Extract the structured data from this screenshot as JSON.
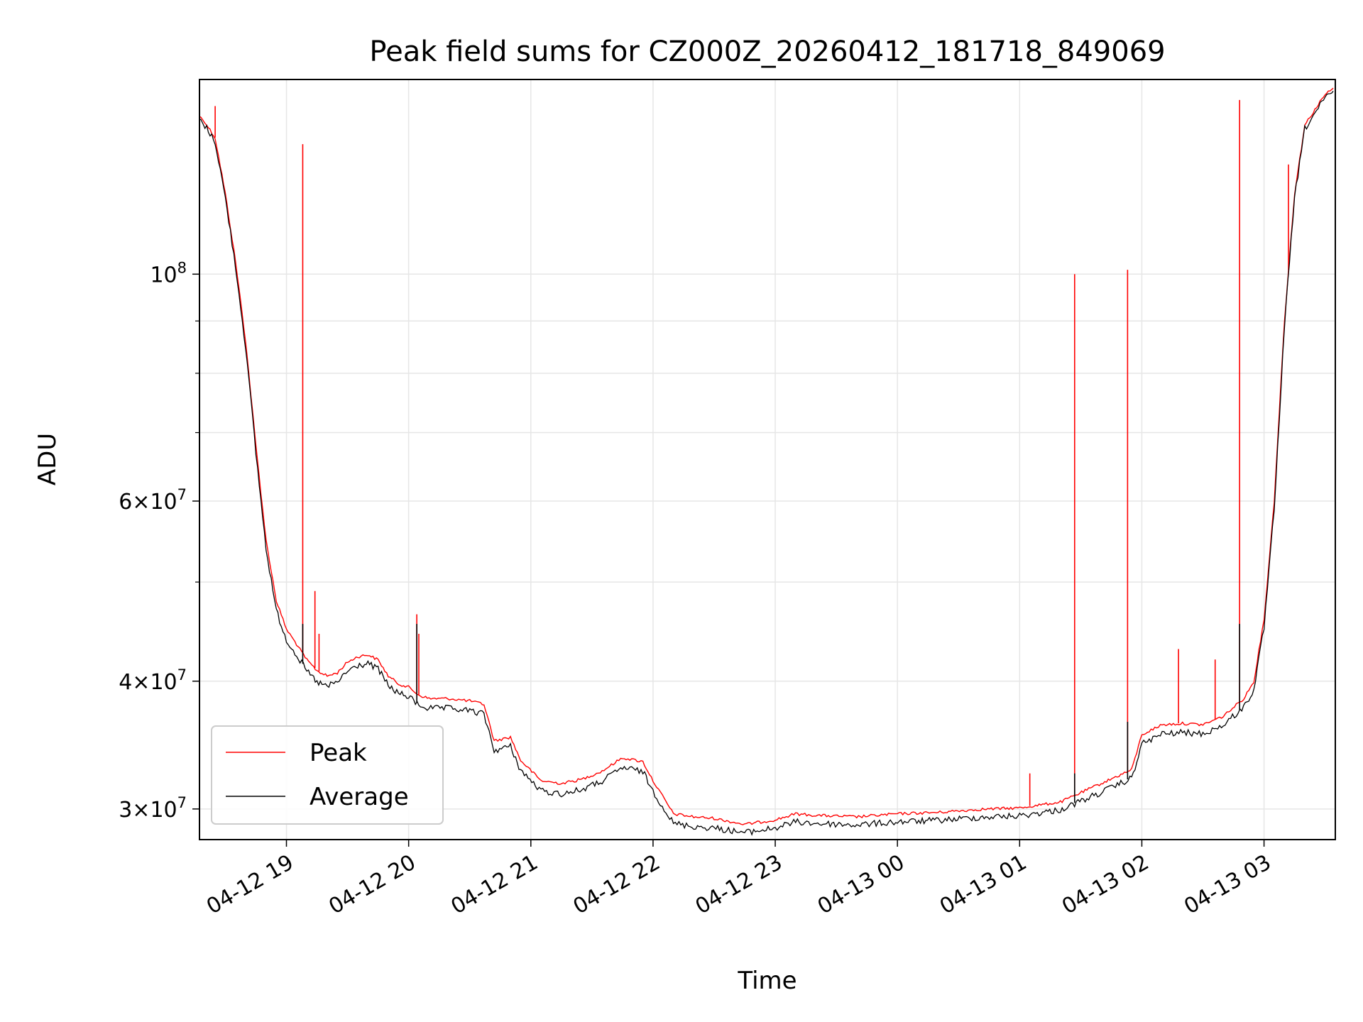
{
  "chart_data": {
    "type": "line",
    "title": "Peak field sums for CZ000Z_20260412_181718_849069",
    "xlabel": "Time",
    "ylabel": "ADU",
    "y_scale": "log",
    "ylim": [
      28000000,
      155000000
    ],
    "xlim": [
      "2026-04-12T18:17:18",
      "2026-04-13T03:35:00"
    ],
    "grid": true,
    "legend_position": "lower-left",
    "x_ticks": [
      {
        "value": "2026-04-12T19:00",
        "label": "04-12 19"
      },
      {
        "value": "2026-04-12T20:00",
        "label": "04-12 20"
      },
      {
        "value": "2026-04-12T21:00",
        "label": "04-12 21"
      },
      {
        "value": "2026-04-12T22:00",
        "label": "04-12 22"
      },
      {
        "value": "2026-04-12T23:00",
        "label": "04-12 23"
      },
      {
        "value": "2026-04-13T00:00",
        "label": "04-13 00"
      },
      {
        "value": "2026-04-13T01:00",
        "label": "04-13 01"
      },
      {
        "value": "2026-04-13T02:00",
        "label": "04-13 02"
      },
      {
        "value": "2026-04-13T03:00",
        "label": "04-13 03"
      }
    ],
    "y_ticks_major": [
      {
        "value": 30000000,
        "mantissa": "3",
        "exponent": "7"
      },
      {
        "value": 40000000,
        "mantissa": "4",
        "exponent": "7"
      },
      {
        "value": 60000000,
        "mantissa": "6",
        "exponent": "7"
      },
      {
        "value": 100000000,
        "mantissa": "",
        "exponent": "8"
      }
    ],
    "y_ticks_minor": [
      50000000,
      70000000,
      80000000,
      90000000
    ],
    "series": [
      {
        "name": "Peak",
        "color": "#ff0000",
        "points": [
          [
            "2026-04-12T18:17",
            143000000
          ],
          [
            "2026-04-12T18:20",
            141000000
          ],
          [
            "2026-04-12T18:25",
            136000000
          ],
          [
            "2026-04-12T18:30",
            120000000
          ],
          [
            "2026-04-12T18:35",
            103000000
          ],
          [
            "2026-04-12T18:40",
            86000000
          ],
          [
            "2026-04-12T18:45",
            68000000
          ],
          [
            "2026-04-12T18:50",
            55000000
          ],
          [
            "2026-04-12T18:55",
            48000000
          ],
          [
            "2026-04-12T19:00",
            45000000
          ],
          [
            "2026-04-12T19:05",
            43500000
          ],
          [
            "2026-04-12T19:10",
            42000000
          ],
          [
            "2026-04-12T19:15",
            41000000
          ],
          [
            "2026-04-12T19:20",
            40500000
          ],
          [
            "2026-04-12T19:25",
            40800000
          ],
          [
            "2026-04-12T19:30",
            41800000
          ],
          [
            "2026-04-12T19:35",
            42300000
          ],
          [
            "2026-04-12T19:40",
            42500000
          ],
          [
            "2026-04-12T19:45",
            42000000
          ],
          [
            "2026-04-12T19:50",
            40500000
          ],
          [
            "2026-04-12T19:55",
            39800000
          ],
          [
            "2026-04-12T20:00",
            39500000
          ],
          [
            "2026-04-12T20:05",
            38800000
          ],
          [
            "2026-04-12T20:10",
            38500000
          ],
          [
            "2026-04-12T20:20",
            38500000
          ],
          [
            "2026-04-12T20:30",
            38300000
          ],
          [
            "2026-04-12T20:37",
            38000000
          ],
          [
            "2026-04-12T20:42",
            35000000
          ],
          [
            "2026-04-12T20:50",
            35300000
          ],
          [
            "2026-04-12T20:55",
            33500000
          ],
          [
            "2026-04-12T21:05",
            32000000
          ],
          [
            "2026-04-12T21:15",
            31800000
          ],
          [
            "2026-04-12T21:25",
            32100000
          ],
          [
            "2026-04-12T21:35",
            32700000
          ],
          [
            "2026-04-12T21:45",
            33700000
          ],
          [
            "2026-04-12T21:55",
            33400000
          ],
          [
            "2026-04-12T22:00",
            32000000
          ],
          [
            "2026-04-12T22:10",
            29700000
          ],
          [
            "2026-04-12T22:20",
            29500000
          ],
          [
            "2026-04-12T22:30",
            29400000
          ],
          [
            "2026-04-12T22:45",
            29000000
          ],
          [
            "2026-04-12T23:00",
            29300000
          ],
          [
            "2026-04-12T23:10",
            29700000
          ],
          [
            "2026-04-12T23:20",
            29600000
          ],
          [
            "2026-04-12T23:40",
            29500000
          ],
          [
            "2026-04-13T00:00",
            29700000
          ],
          [
            "2026-04-13T00:20",
            29800000
          ],
          [
            "2026-04-13T00:40",
            30000000
          ],
          [
            "2026-04-13T01:00",
            30100000
          ],
          [
            "2026-04-13T01:20",
            30500000
          ],
          [
            "2026-04-13T01:40",
            31800000
          ],
          [
            "2026-04-13T01:55",
            32800000
          ],
          [
            "2026-04-13T02:00",
            35500000
          ],
          [
            "2026-04-13T02:10",
            36300000
          ],
          [
            "2026-04-13T02:20",
            36400000
          ],
          [
            "2026-04-13T02:30",
            36300000
          ],
          [
            "2026-04-13T02:40",
            37000000
          ],
          [
            "2026-04-13T02:50",
            38500000
          ],
          [
            "2026-04-13T02:55",
            40000000
          ],
          [
            "2026-04-13T03:00",
            46000000
          ],
          [
            "2026-04-13T03:05",
            60000000
          ],
          [
            "2026-04-13T03:10",
            90000000
          ],
          [
            "2026-04-13T03:15",
            120000000
          ],
          [
            "2026-04-13T03:20",
            140000000
          ],
          [
            "2026-04-13T03:25",
            145000000
          ],
          [
            "2026-04-13T03:30",
            150000000
          ],
          [
            "2026-04-13T03:34",
            152000000
          ]
        ],
        "spikes": [
          [
            "2026-04-12T18:25",
            146000000
          ],
          [
            "2026-04-12T19:08",
            134000000
          ],
          [
            "2026-04-12T19:14",
            49000000
          ],
          [
            "2026-04-12T19:16",
            44500000
          ],
          [
            "2026-04-12T20:04",
            46500000
          ],
          [
            "2026-04-12T20:05",
            44500000
          ],
          [
            "2026-04-13T01:05",
            32500000
          ],
          [
            "2026-04-13T01:27",
            100000000
          ],
          [
            "2026-04-13T01:53",
            101000000
          ],
          [
            "2026-04-13T02:18",
            43000000
          ],
          [
            "2026-04-13T02:36",
            42000000
          ],
          [
            "2026-04-13T02:48",
            148000000
          ],
          [
            "2026-04-13T03:12",
            128000000
          ]
        ]
      },
      {
        "name": "Average",
        "color": "#000000",
        "points": [
          [
            "2026-04-12T18:17",
            142000000
          ],
          [
            "2026-04-12T18:20",
            140000000
          ],
          [
            "2026-04-12T18:25",
            135000000
          ],
          [
            "2026-04-12T18:30",
            119000000
          ],
          [
            "2026-04-12T18:35",
            102000000
          ],
          [
            "2026-04-12T18:40",
            85000000
          ],
          [
            "2026-04-12T18:45",
            67000000
          ],
          [
            "2026-04-12T18:50",
            54000000
          ],
          [
            "2026-04-12T18:55",
            47000000
          ],
          [
            "2026-04-12T19:00",
            44000000
          ],
          [
            "2026-04-12T19:05",
            42500000
          ],
          [
            "2026-04-12T19:10",
            41000000
          ],
          [
            "2026-04-12T19:15",
            40000000
          ],
          [
            "2026-04-12T19:20",
            39600000
          ],
          [
            "2026-04-12T19:25",
            40000000
          ],
          [
            "2026-04-12T19:30",
            41000000
          ],
          [
            "2026-04-12T19:35",
            41500000
          ],
          [
            "2026-04-12T19:40",
            41700000
          ],
          [
            "2026-04-12T19:45",
            41200000
          ],
          [
            "2026-04-12T19:50",
            39700000
          ],
          [
            "2026-04-12T19:55",
            39000000
          ],
          [
            "2026-04-12T20:00",
            38700000
          ],
          [
            "2026-04-12T20:05",
            38000000
          ],
          [
            "2026-04-12T20:10",
            37700000
          ],
          [
            "2026-04-12T20:20",
            37700000
          ],
          [
            "2026-04-12T20:30",
            37500000
          ],
          [
            "2026-04-12T20:37",
            37200000
          ],
          [
            "2026-04-12T20:42",
            34300000
          ],
          [
            "2026-04-12T20:50",
            34600000
          ],
          [
            "2026-04-12T20:55",
            32800000
          ],
          [
            "2026-04-12T21:05",
            31300000
          ],
          [
            "2026-04-12T21:15",
            31100000
          ],
          [
            "2026-04-12T21:25",
            31400000
          ],
          [
            "2026-04-12T21:35",
            32000000
          ],
          [
            "2026-04-12T21:45",
            33000000
          ],
          [
            "2026-04-12T21:55",
            32700000
          ],
          [
            "2026-04-12T22:00",
            31300000
          ],
          [
            "2026-04-12T22:10",
            29100000
          ],
          [
            "2026-04-12T22:20",
            28900000
          ],
          [
            "2026-04-12T22:30",
            28800000
          ],
          [
            "2026-04-12T22:45",
            28500000
          ],
          [
            "2026-04-12T23:00",
            28800000
          ],
          [
            "2026-04-12T23:10",
            29200000
          ],
          [
            "2026-04-12T23:20",
            29100000
          ],
          [
            "2026-04-12T23:40",
            29000000
          ],
          [
            "2026-04-13T00:00",
            29200000
          ],
          [
            "2026-04-13T00:20",
            29300000
          ],
          [
            "2026-04-13T00:40",
            29500000
          ],
          [
            "2026-04-13T01:00",
            29600000
          ],
          [
            "2026-04-13T01:20",
            30000000
          ],
          [
            "2026-04-13T01:40",
            31200000
          ],
          [
            "2026-04-13T01:55",
            32200000
          ],
          [
            "2026-04-13T02:00",
            34800000
          ],
          [
            "2026-04-13T02:10",
            35600000
          ],
          [
            "2026-04-13T02:20",
            35700000
          ],
          [
            "2026-04-13T02:30",
            35600000
          ],
          [
            "2026-04-13T02:40",
            36300000
          ],
          [
            "2026-04-13T02:50",
            37800000
          ],
          [
            "2026-04-13T02:55",
            39300000
          ],
          [
            "2026-04-13T03:00",
            45200000
          ],
          [
            "2026-04-13T03:05",
            59000000
          ],
          [
            "2026-04-13T03:10",
            89000000
          ],
          [
            "2026-04-13T03:15",
            119000000
          ],
          [
            "2026-04-13T03:20",
            139000000
          ],
          [
            "2026-04-13T03:25",
            144000000
          ],
          [
            "2026-04-13T03:30",
            149000000
          ],
          [
            "2026-04-13T03:34",
            151000000
          ]
        ],
        "spikes": [
          [
            "2026-04-12T19:08",
            45500000
          ],
          [
            "2026-04-12T20:04",
            45500000
          ],
          [
            "2026-04-13T01:27",
            32500000
          ],
          [
            "2026-04-13T01:53",
            36500000
          ],
          [
            "2026-04-13T02:48",
            45500000
          ]
        ]
      }
    ]
  }
}
